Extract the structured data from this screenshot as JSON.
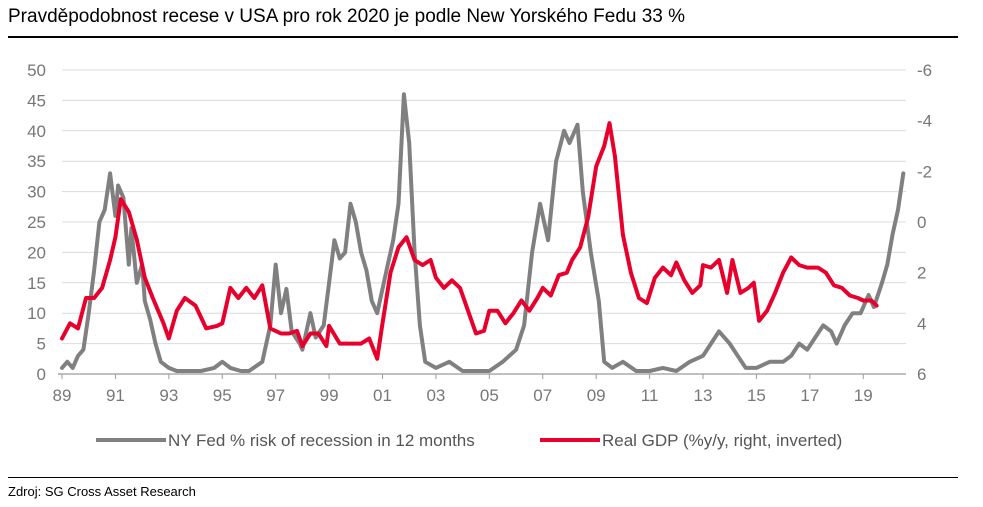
{
  "title": "Pravděpodobnost recese v USA pro rok 2020 je podle New Yorského Fedu 33 %",
  "source": "Zdroj: SG Cross Asset Research",
  "chart_data": {
    "type": "line",
    "x_tick_labels": [
      "89",
      "91",
      "93",
      "95",
      "97",
      "99",
      "01",
      "03",
      "05",
      "07",
      "09",
      "11",
      "13",
      "15",
      "17",
      "19"
    ],
    "x_ticks": [
      1989,
      1991,
      1993,
      1995,
      1997,
      1999,
      2001,
      2003,
      2005,
      2007,
      2009,
      2011,
      2013,
      2015,
      2017,
      2019
    ],
    "xlim": [
      1989,
      2020.6
    ],
    "y_left": {
      "ylim": [
        0,
        50
      ],
      "ticks": [
        0,
        5,
        10,
        15,
        20,
        25,
        30,
        35,
        40,
        45,
        50
      ]
    },
    "y_right": {
      "ylim": [
        6,
        -6
      ],
      "inverted": true,
      "ticks": [
        6,
        4,
        2,
        0,
        -2,
        -4,
        -6
      ]
    },
    "grid": true,
    "legend_position": "bottom",
    "series": [
      {
        "name": "NY Fed % risk of recession in 12 months",
        "axis": "left",
        "color": "#808080",
        "points": [
          [
            1989.0,
            1
          ],
          [
            1989.2,
            2
          ],
          [
            1989.4,
            1
          ],
          [
            1989.6,
            3
          ],
          [
            1989.8,
            4
          ],
          [
            1990.0,
            10
          ],
          [
            1990.2,
            17
          ],
          [
            1990.4,
            25
          ],
          [
            1990.6,
            27
          ],
          [
            1990.8,
            33
          ],
          [
            1991.0,
            26
          ],
          [
            1991.1,
            31
          ],
          [
            1991.3,
            29
          ],
          [
            1991.5,
            18
          ],
          [
            1991.6,
            24
          ],
          [
            1991.8,
            15
          ],
          [
            1992.0,
            18
          ],
          [
            1992.1,
            12
          ],
          [
            1992.3,
            9
          ],
          [
            1992.5,
            5
          ],
          [
            1992.7,
            2
          ],
          [
            1993.0,
            1
          ],
          [
            1993.3,
            0.5
          ],
          [
            1993.7,
            0.5
          ],
          [
            1994.2,
            0.5
          ],
          [
            1994.7,
            1
          ],
          [
            1995.0,
            2
          ],
          [
            1995.3,
            1
          ],
          [
            1995.7,
            0.5
          ],
          [
            1996.0,
            0.5
          ],
          [
            1996.5,
            2
          ],
          [
            1996.8,
            8
          ],
          [
            1997.0,
            18
          ],
          [
            1997.2,
            10
          ],
          [
            1997.4,
            14
          ],
          [
            1997.6,
            7
          ],
          [
            1997.9,
            5
          ],
          [
            1998.0,
            4
          ],
          [
            1998.3,
            10
          ],
          [
            1998.5,
            6
          ],
          [
            1998.8,
            8
          ],
          [
            1999.0,
            15
          ],
          [
            1999.2,
            22
          ],
          [
            1999.4,
            19
          ],
          [
            1999.6,
            20
          ],
          [
            1999.8,
            28
          ],
          [
            2000.0,
            25
          ],
          [
            2000.2,
            20
          ],
          [
            2000.4,
            17
          ],
          [
            2000.6,
            12
          ],
          [
            2000.8,
            10
          ],
          [
            2001.0,
            14
          ],
          [
            2001.2,
            18
          ],
          [
            2001.4,
            22
          ],
          [
            2001.6,
            28
          ],
          [
            2001.8,
            46
          ],
          [
            2002.0,
            38
          ],
          [
            2002.2,
            20
          ],
          [
            2002.4,
            8
          ],
          [
            2002.6,
            2
          ],
          [
            2003.0,
            1
          ],
          [
            2003.5,
            2
          ],
          [
            2004.0,
            0.5
          ],
          [
            2004.5,
            0.5
          ],
          [
            2005.0,
            0.5
          ],
          [
            2005.5,
            2
          ],
          [
            2006.0,
            4
          ],
          [
            2006.3,
            8
          ],
          [
            2006.6,
            20
          ],
          [
            2006.9,
            28
          ],
          [
            2007.2,
            22
          ],
          [
            2007.5,
            35
          ],
          [
            2007.8,
            40
          ],
          [
            2008.0,
            38
          ],
          [
            2008.3,
            41
          ],
          [
            2008.5,
            30
          ],
          [
            2008.8,
            20
          ],
          [
            2009.1,
            12
          ],
          [
            2009.3,
            2
          ],
          [
            2009.6,
            1
          ],
          [
            2010.0,
            2
          ],
          [
            2010.5,
            0.5
          ],
          [
            2011.0,
            0.5
          ],
          [
            2011.5,
            1
          ],
          [
            2012.0,
            0.5
          ],
          [
            2012.5,
            2
          ],
          [
            2013.0,
            3
          ],
          [
            2013.3,
            5
          ],
          [
            2013.6,
            7
          ],
          [
            2014.0,
            5
          ],
          [
            2014.3,
            3
          ],
          [
            2014.6,
            1
          ],
          [
            2015.0,
            1
          ],
          [
            2015.5,
            2
          ],
          [
            2016.0,
            2
          ],
          [
            2016.3,
            3
          ],
          [
            2016.6,
            5
          ],
          [
            2016.9,
            4
          ],
          [
            2017.2,
            6
          ],
          [
            2017.5,
            8
          ],
          [
            2017.8,
            7
          ],
          [
            2018.0,
            5
          ],
          [
            2018.3,
            8
          ],
          [
            2018.6,
            10
          ],
          [
            2018.9,
            10
          ],
          [
            2019.2,
            13
          ],
          [
            2019.4,
            11
          ],
          [
            2019.7,
            15
          ],
          [
            2019.9,
            18
          ],
          [
            2020.1,
            23
          ],
          [
            2020.3,
            27
          ],
          [
            2020.5,
            33
          ]
        ]
      },
      {
        "name": "Real GDP (%y/y, right, inverted)",
        "axis": "right",
        "color": "#e8002d",
        "points": [
          [
            1989.0,
            4.6
          ],
          [
            1989.3,
            4.0
          ],
          [
            1989.6,
            4.2
          ],
          [
            1989.9,
            3.0
          ],
          [
            1990.2,
            3.0
          ],
          [
            1990.5,
            2.6
          ],
          [
            1990.8,
            1.5
          ],
          [
            1991.0,
            0.6
          ],
          [
            1991.2,
            -0.9
          ],
          [
            1991.5,
            -0.4
          ],
          [
            1991.8,
            0.7
          ],
          [
            1992.1,
            2.2
          ],
          [
            1992.4,
            3.0
          ],
          [
            1992.8,
            4.0
          ],
          [
            1993.0,
            4.6
          ],
          [
            1993.3,
            3.5
          ],
          [
            1993.6,
            3.0
          ],
          [
            1994.0,
            3.3
          ],
          [
            1994.4,
            4.2
          ],
          [
            1994.8,
            4.1
          ],
          [
            1995.0,
            4.0
          ],
          [
            1995.3,
            2.6
          ],
          [
            1995.6,
            3.0
          ],
          [
            1995.9,
            2.6
          ],
          [
            1996.2,
            3.0
          ],
          [
            1996.5,
            2.5
          ],
          [
            1996.8,
            4.2
          ],
          [
            1997.2,
            4.4
          ],
          [
            1997.5,
            4.4
          ],
          [
            1997.8,
            4.3
          ],
          [
            1998.0,
            4.9
          ],
          [
            1998.3,
            4.4
          ],
          [
            1998.6,
            4.4
          ],
          [
            1998.9,
            4.9
          ],
          [
            1999.0,
            4.1
          ],
          [
            1999.4,
            4.8
          ],
          [
            1999.8,
            4.8
          ],
          [
            2000.2,
            4.8
          ],
          [
            2000.5,
            4.6
          ],
          [
            2000.8,
            5.4
          ],
          [
            2001.0,
            4.0
          ],
          [
            2001.3,
            2.0
          ],
          [
            2001.6,
            1.0
          ],
          [
            2001.9,
            0.6
          ],
          [
            2002.2,
            1.5
          ],
          [
            2002.5,
            1.7
          ],
          [
            2002.8,
            1.5
          ],
          [
            2003.0,
            2.2
          ],
          [
            2003.3,
            2.6
          ],
          [
            2003.6,
            2.3
          ],
          [
            2003.9,
            2.6
          ],
          [
            2004.2,
            3.5
          ],
          [
            2004.5,
            4.4
          ],
          [
            2004.8,
            4.3
          ],
          [
            2005.0,
            3.5
          ],
          [
            2005.3,
            3.5
          ],
          [
            2005.6,
            4.0
          ],
          [
            2005.9,
            3.6
          ],
          [
            2006.2,
            3.1
          ],
          [
            2006.5,
            3.5
          ],
          [
            2006.8,
            3.0
          ],
          [
            2007.0,
            2.6
          ],
          [
            2007.3,
            2.9
          ],
          [
            2007.6,
            2.1
          ],
          [
            2007.9,
            2.0
          ],
          [
            2008.1,
            1.5
          ],
          [
            2008.4,
            1.0
          ],
          [
            2008.7,
            -0.2
          ],
          [
            2009.0,
            -2.2
          ],
          [
            2009.3,
            -3.0
          ],
          [
            2009.5,
            -3.9
          ],
          [
            2009.7,
            -2.6
          ],
          [
            2010.0,
            0.5
          ],
          [
            2010.3,
            2.0
          ],
          [
            2010.6,
            3.0
          ],
          [
            2010.9,
            3.2
          ],
          [
            2011.2,
            2.2
          ],
          [
            2011.5,
            1.8
          ],
          [
            2011.8,
            2.1
          ],
          [
            2012.0,
            1.6
          ],
          [
            2012.3,
            2.3
          ],
          [
            2012.6,
            2.8
          ],
          [
            2012.9,
            2.5
          ],
          [
            2013.0,
            1.7
          ],
          [
            2013.3,
            1.8
          ],
          [
            2013.6,
            1.5
          ],
          [
            2013.9,
            2.8
          ],
          [
            2014.1,
            1.5
          ],
          [
            2014.4,
            2.8
          ],
          [
            2014.7,
            2.6
          ],
          [
            2014.9,
            2.4
          ],
          [
            2015.1,
            3.9
          ],
          [
            2015.4,
            3.5
          ],
          [
            2015.7,
            2.8
          ],
          [
            2016.0,
            2.0
          ],
          [
            2016.3,
            1.4
          ],
          [
            2016.6,
            1.7
          ],
          [
            2016.9,
            1.8
          ],
          [
            2017.3,
            1.8
          ],
          [
            2017.6,
            2.0
          ],
          [
            2017.9,
            2.5
          ],
          [
            2018.2,
            2.6
          ],
          [
            2018.5,
            2.9
          ],
          [
            2018.8,
            3.0
          ],
          [
            2019.0,
            3.1
          ],
          [
            2019.3,
            3.1
          ],
          [
            2019.5,
            3.3
          ]
        ]
      }
    ]
  }
}
